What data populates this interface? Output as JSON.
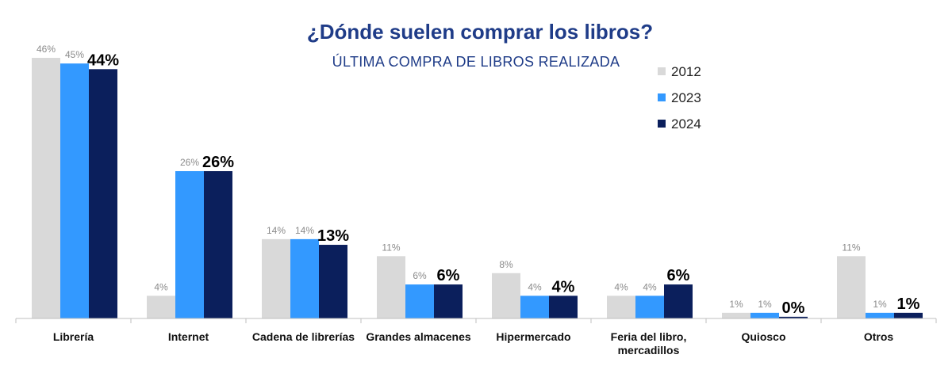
{
  "chart_data": {
    "type": "bar",
    "title": "¿Dónde suelen comprar los libros?",
    "subtitle": "ÚLTIMA COMPRA DE LIBROS REALIZADA",
    "xlabel": "",
    "ylabel": "",
    "ylim": [
      0,
      46
    ],
    "legend_position": "top-right",
    "categories": [
      [
        "Librería"
      ],
      [
        "Internet"
      ],
      [
        "Cadena de librerías"
      ],
      [
        "Grandes almacenes"
      ],
      [
        "Hipermercado"
      ],
      [
        "Feria del libro,",
        "mercadillos"
      ],
      [
        "Quiosco"
      ],
      [
        "Otros"
      ]
    ],
    "series": [
      {
        "name": "2012",
        "color": "#d9d9d9",
        "values": [
          46,
          4,
          14,
          11,
          8,
          4,
          1,
          11
        ],
        "labels": [
          "46%",
          "4%",
          "14%",
          "11%",
          "8%",
          "4%",
          "1%",
          "11%"
        ]
      },
      {
        "name": "2023",
        "color": "#3399ff",
        "values": [
          45,
          26,
          14,
          6,
          4,
          4,
          1,
          1
        ],
        "labels": [
          "45%",
          "26%",
          "14%",
          "6%",
          "4%",
          "4%",
          "1%",
          "1%"
        ]
      },
      {
        "name": "2024",
        "color": "#0b1f5c",
        "values": [
          44,
          26,
          13,
          6,
          4,
          6,
          0.3,
          1
        ],
        "labels": [
          "44%",
          "26%",
          "13%",
          "6%",
          "4%",
          "6%",
          "0%",
          "1%"
        ]
      }
    ]
  }
}
